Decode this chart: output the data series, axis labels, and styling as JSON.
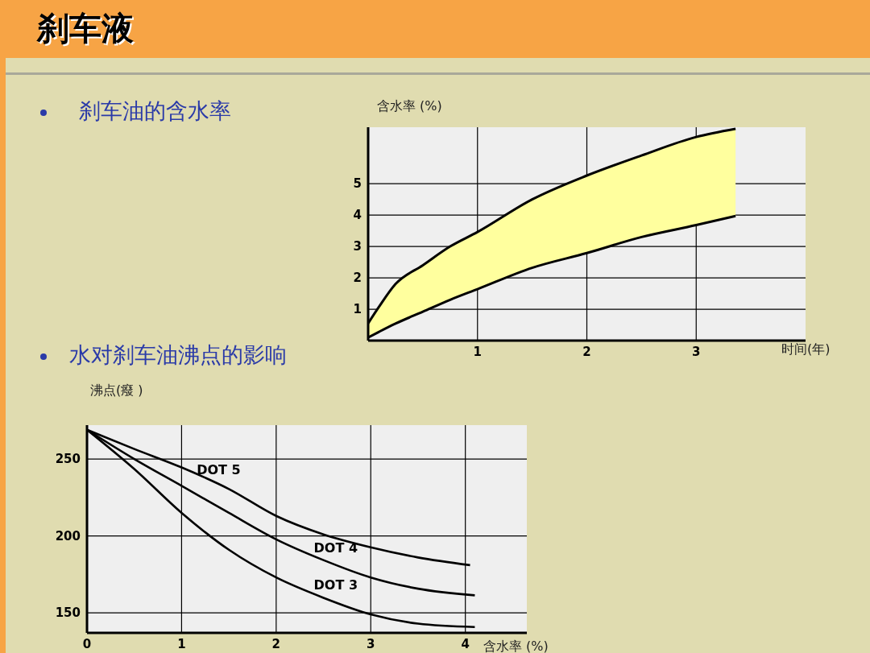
{
  "chart_data": [
    {
      "type": "line",
      "title": "刹车油的含水率",
      "annotations": [
        "刹车液"
      ],
      "xlabel": "时间(年)",
      "ylabel": "含水率 (%)",
      "x": [
        0,
        0.1,
        0.25,
        0.5,
        0.75,
        1,
        1.5,
        2,
        2.5,
        3,
        3.36
      ],
      "series": [
        {
          "color": "#000000",
          "values": [
            0.1,
            0.28,
            0.54,
            0.92,
            1.3,
            1.64,
            2.32,
            2.79,
            3.3,
            3.68,
            3.97
          ]
        },
        {
          "color": "#000000",
          "values": [
            0.55,
            1.08,
            1.8,
            2.4,
            3.0,
            3.46,
            4.5,
            5.26,
            5.9,
            6.49,
            6.75
          ],
          "lower": [
            0.1,
            0.28,
            0.54,
            0.92,
            1.3,
            1.64,
            2.32,
            2.79,
            3.3,
            3.68,
            3.97
          ],
          "upper": [
            0.55,
            1.08,
            1.8,
            2.4,
            3.0,
            3.46,
            4.5,
            5.26,
            5.9,
            6.49,
            6.75
          ]
        }
      ],
      "xlim": [
        0,
        4
      ],
      "ylim": [
        0,
        6.8
      ],
      "xticks": [
        1,
        2,
        3
      ],
      "yticks": [
        1,
        2,
        3,
        4,
        5
      ],
      "grid": true,
      "marker": "none",
      "line_style": "solid"
    },
    {
      "type": "line",
      "title": "水对刹车油沸点的影响",
      "xlabel": "含水率 (%)",
      "ylabel": "沸点(癈 )",
      "series": [
        {
          "name": "DOT 5",
          "color": "#000000",
          "x": [
            0,
            0.5,
            1,
            1.5,
            2,
            2.5,
            3,
            3.5,
            4.05
          ],
          "values": [
            269,
            256.5,
            244.5,
            230.5,
            213,
            201,
            192.6,
            186,
            181
          ]
        },
        {
          "name": "DOT 4",
          "color": "#000000",
          "x": [
            0,
            0.5,
            1,
            1.5,
            2,
            2.5,
            3,
            3.5,
            4.1
          ],
          "values": [
            269,
            250,
            232.6,
            215,
            197.8,
            184.3,
            173,
            165.7,
            161.4
          ]
        },
        {
          "name": "DOT 3",
          "color": "#000000",
          "x": [
            0,
            0.5,
            1,
            1.5,
            2,
            2.5,
            3,
            3.5,
            4.1
          ],
          "values": [
            269,
            243.5,
            215,
            191,
            173,
            159.8,
            149,
            143,
            140.8
          ]
        }
      ],
      "xlim": [
        0,
        4.65
      ],
      "ylim": [
        137,
        272
      ],
      "xticks": [
        0,
        1,
        2,
        3,
        4
      ],
      "yticks": [
        150,
        200,
        250
      ],
      "grid": true,
      "marker": "none",
      "line_style": "solid"
    }
  ]
}
